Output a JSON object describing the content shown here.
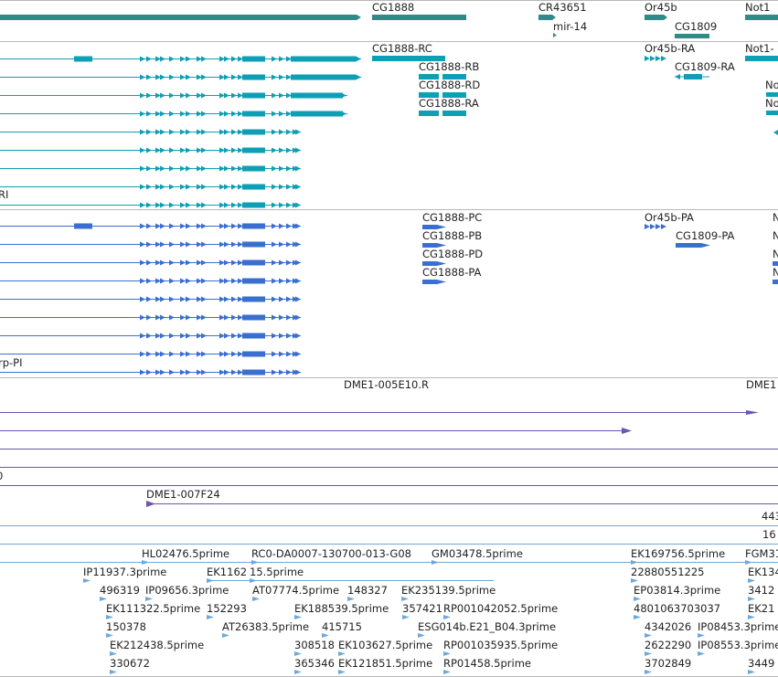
{
  "colors": {
    "gene": "#2e8b88",
    "transcript_cyan": "#0e9fb4",
    "transcript_blue": "#3a6fd0",
    "cdna_purple": "#6a55b0",
    "est_light": "#6fa8d6",
    "divider": "#b8b8b8",
    "label": "#222222"
  },
  "tracks": {
    "genes": [
      {
        "label": "CG1888"
      },
      {
        "label": "CR43651"
      },
      {
        "label": "mir-14"
      },
      {
        "label": "Or45b"
      },
      {
        "label": "CG1809"
      },
      {
        "label": "Not1"
      }
    ],
    "transcripts_cyan": [
      {
        "label": "CG1888-RC"
      },
      {
        "label": "CG1888-RB"
      },
      {
        "label": "CG1888-RD"
      },
      {
        "label": "CG1888-RA"
      },
      {
        "label": "Or45b-RA"
      },
      {
        "label": "CG1809-RA"
      },
      {
        "label": "Not1-"
      },
      {
        "label": "No"
      },
      {
        "label": "No"
      },
      {
        "label": "RI"
      }
    ],
    "transcripts_blue": [
      {
        "label": "CG1888-PC"
      },
      {
        "label": "CG1888-PB"
      },
      {
        "label": "CG1888-PD"
      },
      {
        "label": "CG1888-PA"
      },
      {
        "label": "Or45b-PA"
      },
      {
        "label": "CG1809-PA"
      },
      {
        "label": "N"
      },
      {
        "label": "N"
      },
      {
        "label": "N"
      },
      {
        "label": "N"
      },
      {
        "label": "rp-PI"
      }
    ],
    "cdna": [
      {
        "label": "DME1-005E10.R"
      },
      {
        "label": "DME1"
      },
      {
        "label": "DME1-007F24"
      },
      {
        "label": "0"
      }
    ],
    "ests": [
      {
        "label": "443"
      },
      {
        "label": "16"
      },
      {
        "label": "HL02476.5prime"
      },
      {
        "label": "RC0-DA0007-130700-013-G08"
      },
      {
        "label": "GM03478.5prime"
      },
      {
        "label": "EK169756.5prime"
      },
      {
        "label": "FGM31"
      },
      {
        "label": "IP11937.3prime"
      },
      {
        "label": "EK1162"
      },
      {
        "label": "15.5prime"
      },
      {
        "label": "22880551225"
      },
      {
        "label": "EK134"
      },
      {
        "label": "496319"
      },
      {
        "label": "IP09656.3prime"
      },
      {
        "label": "AT07774.5prime"
      },
      {
        "label": "148327"
      },
      {
        "label": "EK235139.5prime"
      },
      {
        "label": "EP03814.3prime"
      },
      {
        "label": "3412"
      },
      {
        "label": "EK111322.5prime"
      },
      {
        "label": "152293"
      },
      {
        "label": "EK188539.5prime"
      },
      {
        "label": "357421"
      },
      {
        "label": "RP001042052.5prime"
      },
      {
        "label": "4801063703037"
      },
      {
        "label": "EK21"
      },
      {
        "label": "150378"
      },
      {
        "label": "AT26383.5prime"
      },
      {
        "label": "415715"
      },
      {
        "label": "ESG014b.E21_B04.3prime"
      },
      {
        "label": "4342026"
      },
      {
        "label": "IP08453.3prime"
      },
      {
        "label": "EK212438.5prime"
      },
      {
        "label": "308518"
      },
      {
        "label": "EK103627.5prime"
      },
      {
        "label": "RP001035935.5prime"
      },
      {
        "label": "2622290"
      },
      {
        "label": "IP08553.3prime"
      },
      {
        "label": "330672"
      },
      {
        "label": "365346"
      },
      {
        "label": "EK121851.5prime"
      },
      {
        "label": "RP01458.5prime"
      },
      {
        "label": "3702849"
      },
      {
        "label": "3449"
      }
    ]
  }
}
